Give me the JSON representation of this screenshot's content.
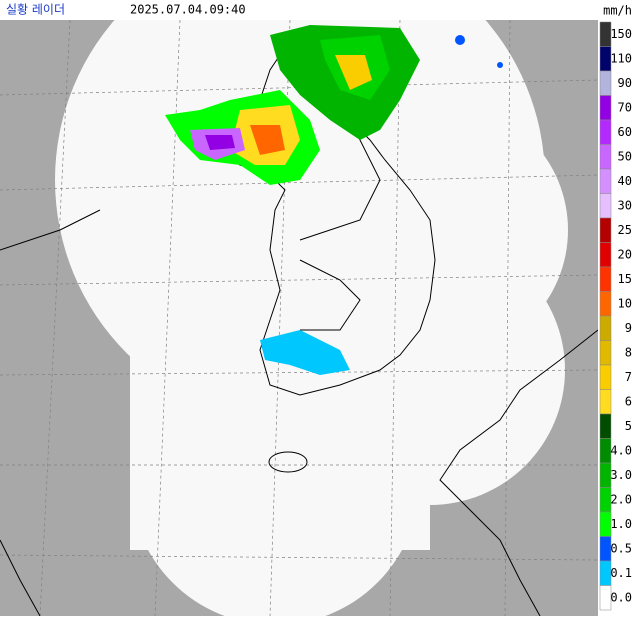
{
  "header": {
    "title": "실황 레이더",
    "timestamp": "2025.07.04.09:40",
    "unit": "mm/h"
  },
  "legend": {
    "items": [
      {
        "label": "150",
        "color": "#333333"
      },
      {
        "label": "110",
        "color": "#00036c"
      },
      {
        "label": "90",
        "color": "#b3b4de"
      },
      {
        "label": "70",
        "color": "#9300e4"
      },
      {
        "label": "60",
        "color": "#b329ff"
      },
      {
        "label": "50",
        "color": "#c966ff"
      },
      {
        "label": "40",
        "color": "#d490ff"
      },
      {
        "label": "30",
        "color": "#e6bfff"
      },
      {
        "label": "25",
        "color": "#b40000"
      },
      {
        "label": "20",
        "color": "#e00000"
      },
      {
        "label": "15",
        "color": "#ff3300"
      },
      {
        "label": "10",
        "color": "#ff6600"
      },
      {
        "label": "9",
        "color": "#ccaa00"
      },
      {
        "label": "8",
        "color": "#e0b900"
      },
      {
        "label": "7",
        "color": "#f9cd00"
      },
      {
        "label": "6",
        "color": "#ffdc1f"
      },
      {
        "label": "5",
        "color": "#004d00"
      },
      {
        "label": "4.0",
        "color": "#008c00"
      },
      {
        "label": "3.0",
        "color": "#00b400"
      },
      {
        "label": "2.0",
        "color": "#00d200"
      },
      {
        "label": "1.0",
        "color": "#00ff00"
      },
      {
        "label": "0.5",
        "color": "#0055ff"
      },
      {
        "label": "0.1",
        "color": "#00c8ff"
      },
      {
        "label": "0.0",
        "color": "#ffffff"
      }
    ]
  }
}
